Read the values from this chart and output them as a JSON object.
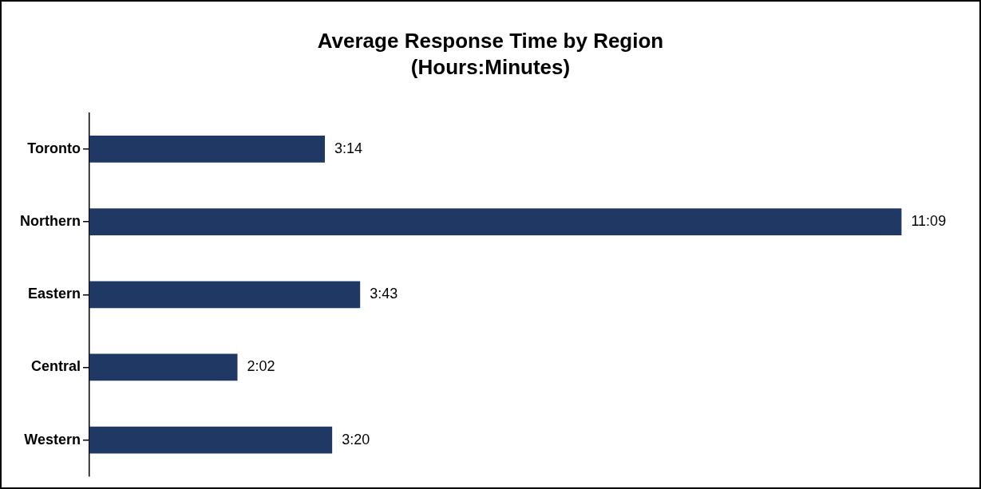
{
  "chart_data": {
    "type": "bar",
    "orientation": "horizontal",
    "title": "Average Response Time by Region",
    "subtitle": "(Hours:Minutes)",
    "categories": [
      "Toronto",
      "Northern",
      "Eastern",
      "Central",
      "Western"
    ],
    "values": [
      3.233,
      11.15,
      3.717,
      2.033,
      3.333
    ],
    "value_labels": [
      "3:14",
      "11:09",
      "3:43",
      "2:02",
      "3:20"
    ],
    "color": "#203864",
    "legend": false,
    "tick_labels": "y"
  }
}
